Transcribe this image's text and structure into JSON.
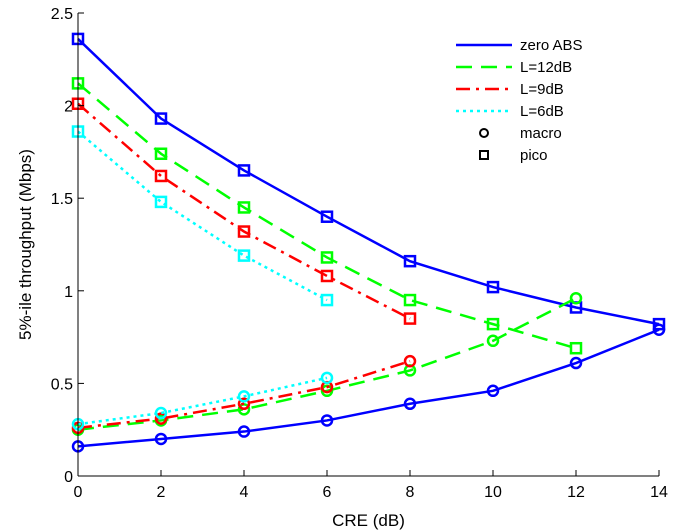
{
  "chart_data": {
    "type": "line",
    "title": "",
    "xlabel": "CRE (dB)",
    "ylabel": "5%-ile throughput (Mbps)",
    "xlim": [
      0,
      14
    ],
    "ylim": [
      0,
      2.5
    ],
    "xticks": [
      0,
      2,
      4,
      6,
      8,
      10,
      12,
      14
    ],
    "yticks": [
      0,
      0.5,
      1,
      1.5,
      2,
      2.5
    ],
    "xtick_labels": [
      "0",
      "2",
      "4",
      "6",
      "8",
      "10",
      "12",
      "14"
    ],
    "ytick_labels": [
      "0",
      "0.5",
      "1",
      "1.5",
      "2",
      "2.5"
    ],
    "grid": false,
    "legend_position": "top-right",
    "legend": [
      {
        "label": "zero ABS",
        "kind": "line",
        "color": "#0000ff",
        "dash": "solid"
      },
      {
        "label": "L=12dB",
        "kind": "line",
        "color": "#00ff00",
        "dash": "dashed"
      },
      {
        "label": "L=9dB",
        "kind": "line",
        "color": "#ff0000",
        "dash": "dashdot"
      },
      {
        "label": "L=6dB",
        "kind": "line",
        "color": "#00ffff",
        "dash": "dotted"
      },
      {
        "label": "macro",
        "kind": "marker",
        "marker": "circle",
        "color": "#000000"
      },
      {
        "label": "pico",
        "kind": "marker",
        "marker": "square",
        "color": "#000000"
      }
    ],
    "series": [
      {
        "group": "zero ABS",
        "marker": "square",
        "color": "#0000ff",
        "dash": "solid",
        "x": [
          0,
          2,
          4,
          6,
          8,
          10,
          12,
          14
        ],
        "y": [
          2.36,
          1.93,
          1.65,
          1.4,
          1.16,
          1.02,
          0.91,
          0.82
        ]
      },
      {
        "group": "zero ABS",
        "marker": "circle",
        "color": "#0000ff",
        "dash": "solid",
        "x": [
          0,
          2,
          4,
          6,
          8,
          10,
          12,
          14
        ],
        "y": [
          0.16,
          0.2,
          0.24,
          0.3,
          0.39,
          0.46,
          0.61,
          0.79
        ]
      },
      {
        "group": "L=12dB",
        "marker": "square",
        "color": "#00ff00",
        "dash": "dashed",
        "x": [
          0,
          2,
          4,
          6,
          8,
          10,
          12
        ],
        "y": [
          2.12,
          1.74,
          1.45,
          1.18,
          0.95,
          0.82,
          0.69
        ]
      },
      {
        "group": "L=12dB",
        "marker": "circle",
        "color": "#00ff00",
        "dash": "dashed",
        "x": [
          0,
          2,
          4,
          6,
          8,
          10,
          12
        ],
        "y": [
          0.25,
          0.3,
          0.36,
          0.46,
          0.57,
          0.73,
          0.96
        ]
      },
      {
        "group": "L=9dB",
        "marker": "square",
        "color": "#ff0000",
        "dash": "dashdot",
        "x": [
          0,
          2,
          4,
          6,
          8
        ],
        "y": [
          2.01,
          1.62,
          1.32,
          1.08,
          0.85
        ]
      },
      {
        "group": "L=9dB",
        "marker": "circle",
        "color": "#ff0000",
        "dash": "dashdot",
        "x": [
          0,
          2,
          4,
          6,
          8
        ],
        "y": [
          0.26,
          0.31,
          0.39,
          0.48,
          0.62
        ]
      },
      {
        "group": "L=6dB",
        "marker": "square",
        "color": "#00ffff",
        "dash": "dotted",
        "x": [
          0,
          2,
          4,
          6
        ],
        "y": [
          1.86,
          1.48,
          1.19,
          0.95
        ]
      },
      {
        "group": "L=6dB",
        "marker": "circle",
        "color": "#00ffff",
        "dash": "dotted",
        "x": [
          0,
          2,
          4,
          6
        ],
        "y": [
          0.28,
          0.34,
          0.43,
          0.53
        ]
      }
    ]
  }
}
